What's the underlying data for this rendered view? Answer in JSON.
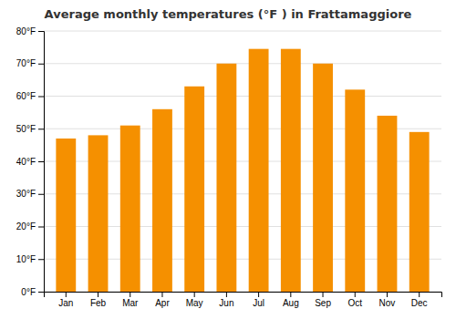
{
  "chart_data": {
    "type": "bar",
    "title": "Average monthly temperatures (°F ) in Frattamaggiore",
    "categories": [
      "Jan",
      "Feb",
      "Mar",
      "Apr",
      "May",
      "Jun",
      "Jul",
      "Aug",
      "Sep",
      "Oct",
      "Nov",
      "Dec"
    ],
    "values": [
      47,
      48,
      51,
      56,
      63,
      70,
      74.5,
      74.5,
      70,
      62,
      54,
      49
    ],
    "color": "#F59000",
    "ylim": [
      0,
      80
    ],
    "yticks": [
      {
        "value": 0,
        "label": "0°F"
      },
      {
        "value": 10,
        "label": "10°F"
      },
      {
        "value": 20,
        "label": "20°F"
      },
      {
        "value": 30,
        "label": "30°F"
      },
      {
        "value": 40,
        "label": "40°F"
      },
      {
        "value": 50,
        "label": "50°F"
      },
      {
        "value": 60,
        "label": "60°F"
      },
      {
        "value": 70,
        "label": "70°F"
      },
      {
        "value": 80,
        "label": "80°F"
      }
    ],
    "grid": true
  }
}
